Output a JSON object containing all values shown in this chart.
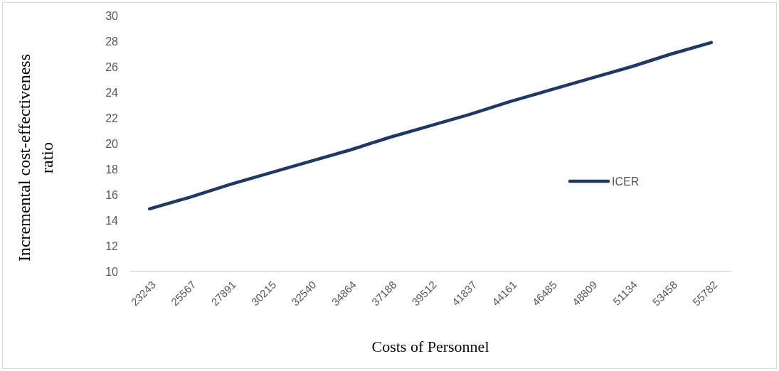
{
  "chart_data": {
    "type": "line",
    "xlabel": "Costs of Personnel",
    "ylabel": "Incremental cost-effectiveness ratio",
    "categories": [
      "23243",
      "25567",
      "27891",
      "30215",
      "32540",
      "34864",
      "37188",
      "39512",
      "41837",
      "44161",
      "46485",
      "48809",
      "51134",
      "53458",
      "55782"
    ],
    "series": [
      {
        "name": "ICER",
        "color": "#203864",
        "values": [
          14.9,
          15.8,
          16.8,
          17.7,
          18.6,
          19.5,
          20.5,
          21.4,
          22.3,
          23.3,
          24.2,
          25.1,
          26.0,
          27.0,
          27.9
        ]
      }
    ],
    "ylim": [
      10,
      30
    ],
    "yticks": [
      10,
      12,
      14,
      16,
      18,
      20,
      22,
      24,
      26,
      28,
      30
    ],
    "legend": "right"
  }
}
